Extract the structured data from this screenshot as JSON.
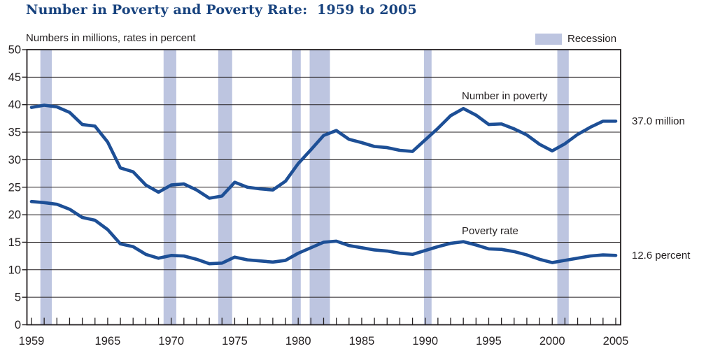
{
  "title": "Number in Poverty and Poverty Rate:  1959 to 2005",
  "subtitle": "Numbers in millions, rates in percent",
  "legend": {
    "recession_label": "Recession"
  },
  "annotations": {
    "number_series_label": "Number in poverty",
    "rate_series_label": "Poverty rate",
    "number_end_label": "37.0 million",
    "rate_end_label": "12.6 percent"
  },
  "colors": {
    "title_text": "#17427e",
    "line": "#1d4f96",
    "recession_band": "#bdc5e0",
    "axis_text": "#231f20",
    "grid": "#231f20"
  },
  "chart_data": {
    "type": "line",
    "title": "Number in Poverty and Poverty Rate: 1959 to 2005",
    "xlabel": "",
    "ylabel": "Numbers in millions, rates in percent",
    "ylim": [
      0,
      50
    ],
    "yticks": [
      0,
      5,
      10,
      15,
      20,
      25,
      30,
      35,
      40,
      45,
      50
    ],
    "xtick_years_labeled": [
      1959,
      1965,
      1970,
      1975,
      1980,
      1985,
      1990,
      1995,
      2000,
      2005
    ],
    "xtick_step": 1,
    "grid": "horizontal",
    "legend_position": "top-right",
    "x": [
      1959,
      1960,
      1961,
      1962,
      1963,
      1964,
      1965,
      1966,
      1967,
      1968,
      1969,
      1970,
      1971,
      1972,
      1973,
      1974,
      1975,
      1976,
      1977,
      1978,
      1979,
      1980,
      1981,
      1982,
      1983,
      1984,
      1985,
      1986,
      1987,
      1988,
      1989,
      1990,
      1991,
      1992,
      1993,
      1994,
      1995,
      1996,
      1997,
      1998,
      1999,
      2000,
      2001,
      2002,
      2003,
      2004,
      2005
    ],
    "series": [
      {
        "name": "Number in poverty",
        "unit": "millions",
        "end_label": "37.0 million",
        "values": [
          39.5,
          39.9,
          39.6,
          38.6,
          36.4,
          36.1,
          33.2,
          28.5,
          27.8,
          25.4,
          24.1,
          25.4,
          25.6,
          24.5,
          23.0,
          23.4,
          25.9,
          25.0,
          24.7,
          24.5,
          26.1,
          29.3,
          31.8,
          34.4,
          35.3,
          33.7,
          33.1,
          32.4,
          32.2,
          31.7,
          31.5,
          33.6,
          35.7,
          38.0,
          39.3,
          38.1,
          36.4,
          36.5,
          35.6,
          34.5,
          32.8,
          31.6,
          32.9,
          34.6,
          35.9,
          37.0,
          37.0
        ]
      },
      {
        "name": "Poverty rate",
        "unit": "percent",
        "end_label": "12.6 percent",
        "values": [
          22.4,
          22.2,
          21.9,
          21.0,
          19.5,
          19.0,
          17.3,
          14.7,
          14.2,
          12.8,
          12.1,
          12.6,
          12.5,
          11.9,
          11.1,
          11.2,
          12.3,
          11.8,
          11.6,
          11.4,
          11.7,
          13.0,
          14.0,
          15.0,
          15.2,
          14.4,
          14.0,
          13.6,
          13.4,
          13.0,
          12.8,
          13.5,
          14.2,
          14.8,
          15.1,
          14.5,
          13.8,
          13.7,
          13.3,
          12.7,
          11.9,
          11.3,
          11.7,
          12.1,
          12.5,
          12.7,
          12.6
        ]
      }
    ],
    "recession_spans": [
      [
        1959.7,
        1960.6
      ],
      [
        1969.4,
        1970.4
      ],
      [
        1973.7,
        1974.8
      ],
      [
        1979.5,
        1980.2
      ],
      [
        1980.9,
        1982.5
      ],
      [
        1989.9,
        1990.5
      ],
      [
        2000.4,
        2001.3
      ]
    ]
  }
}
